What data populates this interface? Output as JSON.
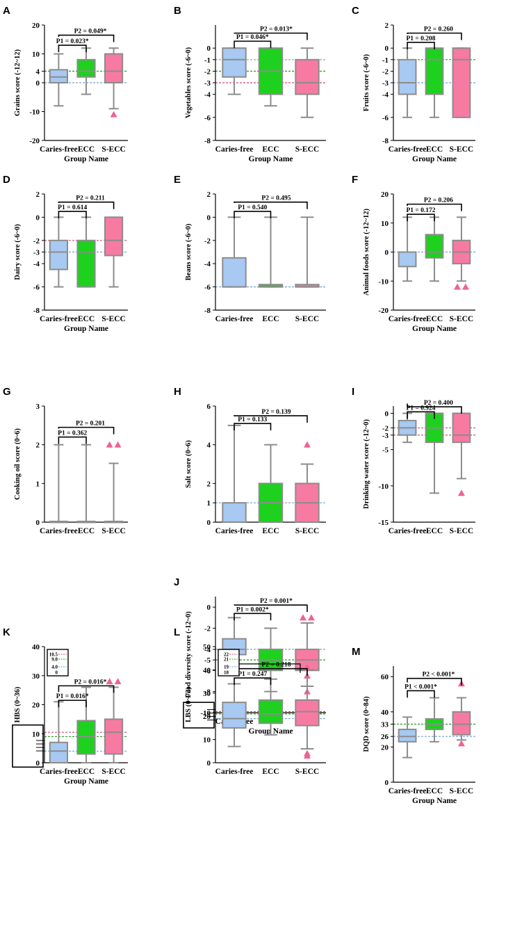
{
  "figure": {
    "group_axis_title": "Group Name",
    "groups": [
      "Caries-free",
      "ECC",
      "S-ECC"
    ],
    "colors": {
      "Caries-free": "#a7c9f2",
      "ECC": "#1ed11e",
      "S-ECC": "#f77aa2",
      "whisker": "#8c8c8c",
      "outlier": "#f06292",
      "line_red": "#d0457a",
      "line_green": "#1d9c1d",
      "line_blue": "#6f9fd6"
    }
  },
  "chart_data": [
    {
      "id": "A",
      "type": "box",
      "ylabel": "Grains score (-12~12)",
      "yticks": [
        -20,
        -10,
        0,
        4,
        10,
        20
      ],
      "ylim": [
        -20,
        20
      ],
      "refs": [
        {
          "y": 4,
          "c": "green"
        },
        {
          "y": 0,
          "c": "blue"
        }
      ],
      "boxes": [
        {
          "min": -8,
          "q1": 0,
          "med": 2,
          "q3": 4.5,
          "max": 10,
          "out": []
        },
        {
          "min": -4,
          "q1": 2,
          "med": 4,
          "q3": 8,
          "max": 12,
          "out": []
        },
        {
          "min": -9,
          "q1": 0,
          "med": 4,
          "q3": 10,
          "max": 12,
          "out": [
            -11
          ]
        }
      ],
      "p1": "P1 = 0.023*",
      "p2": "P2 = 0.049*",
      "p1_y": 13,
      "p2_y": 16.5,
      "has_xlabel": true
    },
    {
      "id": "B",
      "type": "box",
      "ylabel": "Vegetables score (-6~0)",
      "yticks": [
        -8,
        -6,
        -4,
        -3,
        -2,
        -1,
        0
      ],
      "ylim": [
        -8,
        2
      ],
      "refs": [
        {
          "y": -1,
          "c": "blue"
        },
        {
          "y": -2,
          "c": "green"
        },
        {
          "y": -3,
          "c": "red"
        }
      ],
      "boxes": [
        {
          "min": -4,
          "q1": -2.5,
          "med": -1,
          "q3": 0,
          "max": 0,
          "out": []
        },
        {
          "min": -5,
          "q1": -4,
          "med": -2,
          "q3": 0,
          "max": 0,
          "out": []
        },
        {
          "min": -6,
          "q1": -4,
          "med": -3,
          "q3": -1,
          "max": 0,
          "out": []
        }
      ],
      "p1": "P1 = 0.046*",
      "p2": "P2 = 0.013*",
      "p1_y": 0.6,
      "p2_y": 1.3,
      "has_xlabel": true
    },
    {
      "id": "C",
      "type": "box",
      "ylabel": "Fruits score (-6~0)",
      "yticks": [
        -8,
        -6,
        -4,
        -3,
        -2,
        -1,
        0,
        2
      ],
      "ylim": [
        -8,
        2
      ],
      "refs": [
        {
          "y": -1,
          "c": "green"
        },
        {
          "y": -3,
          "c": "blue"
        }
      ],
      "boxes": [
        {
          "min": -6,
          "q1": -4,
          "med": -3,
          "q3": -1,
          "max": 0,
          "out": []
        },
        {
          "min": -6,
          "q1": -4,
          "med": -1,
          "q3": 0,
          "max": 0,
          "out": []
        },
        {
          "min": -6,
          "q1": -6,
          "med": -1,
          "q3": 0,
          "max": 0,
          "out": []
        }
      ],
      "p1": "P1 = 0.208",
      "p2": "P2 = 0.260",
      "p1_y": 0.5,
      "p2_y": 1.3,
      "has_xlabel": true
    },
    {
      "id": "D",
      "type": "box",
      "ylabel": "Dairy score (-6~0)",
      "yticks": [
        -8,
        -6,
        -4,
        -3,
        -2,
        0,
        2
      ],
      "ylim": [
        -8,
        2
      ],
      "refs": [
        {
          "y": -2,
          "c": "red"
        },
        {
          "y": -3,
          "c": "blue"
        }
      ],
      "boxes": [
        {
          "min": -6,
          "q1": -4.5,
          "med": -3,
          "q3": -2,
          "max": 0,
          "out": []
        },
        {
          "min": -6,
          "q1": -6,
          "med": -3,
          "q3": -2,
          "max": 0,
          "out": []
        },
        {
          "min": -6,
          "q1": -3.3,
          "med": -2,
          "q3": 0,
          "max": 0,
          "out": []
        }
      ],
      "p1": "P1 = 0.614",
      "p2": "P2 = 0.211",
      "p1_y": 0.5,
      "p2_y": 1.3,
      "has_xlabel": true
    },
    {
      "id": "E",
      "type": "box",
      "ylabel": "Beans score (-6~0)",
      "yticks": [
        -8,
        -6,
        -4,
        -2,
        0,
        2
      ],
      "ylim": [
        -8,
        2
      ],
      "refs": [
        {
          "y": -6,
          "c": "blue"
        }
      ],
      "boxes": [
        {
          "min": -6,
          "q1": -6,
          "med": -6,
          "q3": -3.5,
          "max": 0,
          "out": []
        },
        {
          "min": -6,
          "q1": -6,
          "med": -6,
          "q3": -5.8,
          "max": 0,
          "out": []
        },
        {
          "min": -6,
          "q1": -6,
          "med": -6,
          "q3": -5.8,
          "max": 0,
          "out": []
        }
      ],
      "p1": "P1 = 0.540",
      "p2": "P2 = 0.495",
      "p1_y": 0.5,
      "p2_y": 1.3,
      "has_xlabel": false
    },
    {
      "id": "F",
      "type": "box",
      "ylabel": "Animal foods score (-12~12)",
      "yticks": [
        -20,
        -10,
        0,
        10,
        20
      ],
      "ylim": [
        -20,
        20
      ],
      "refs": [
        {
          "y": 0,
          "c": "blue"
        }
      ],
      "boxes": [
        {
          "min": -10,
          "q1": -5,
          "med": 0,
          "q3": 0,
          "max": 12,
          "out": []
        },
        {
          "min": -10,
          "q1": -2,
          "med": 0,
          "q3": 6,
          "max": 12,
          "out": []
        },
        {
          "min": -10,
          "q1": -4,
          "med": 0,
          "q3": 4,
          "max": 12,
          "out": [
            -12,
            -12
          ]
        }
      ],
      "p1": "P1 = 0.172",
      "p2": "P2 = 0.206",
      "p1_y": 13,
      "p2_y": 16.5,
      "has_xlabel": true
    },
    {
      "id": "G",
      "type": "box",
      "ylabel": "Cooking oil score (0~6)",
      "yticks": [
        0,
        1,
        2,
        3
      ],
      "ylim": [
        0,
        3
      ],
      "refs": [],
      "boxes": [
        {
          "min": 0,
          "q1": 0,
          "med": 0,
          "q3": 0.02,
          "max": 2,
          "out": []
        },
        {
          "min": 0,
          "q1": 0,
          "med": 0,
          "q3": 0.02,
          "max": 2,
          "out": []
        },
        {
          "min": 0,
          "q1": 0,
          "med": 0,
          "q3": 0.02,
          "max": 1.52,
          "out": [
            2,
            2
          ]
        }
      ],
      "p1": "P1 = 0.362",
      "p2": "P2 = 0.201",
      "p1_y": 2.2,
      "p2_y": 2.45,
      "has_xlabel": false
    },
    {
      "id": "H",
      "type": "box",
      "ylabel": "Salt score (0~6)",
      "yticks": [
        0,
        1,
        2,
        4,
        6
      ],
      "ylim": [
        0,
        6
      ],
      "refs": [
        {
          "y": 1,
          "c": "blue"
        }
      ],
      "boxes": [
        {
          "min": 0,
          "q1": 0,
          "med": 0,
          "q3": 1,
          "max": 5,
          "out": []
        },
        {
          "min": 0,
          "q1": 0,
          "med": 1,
          "q3": 2,
          "max": 4,
          "out": []
        },
        {
          "min": 0,
          "q1": 0,
          "med": 1,
          "q3": 2,
          "max": 3,
          "out": [
            4
          ]
        }
      ],
      "p1": "P1 = 0.133",
      "p2": "P2 = 0.139",
      "p1_y": 5.1,
      "p2_y": 5.5,
      "has_xlabel": false
    },
    {
      "id": "I",
      "type": "box",
      "ylabel": "Drinking water score (-12~0)",
      "yticks": [
        -15,
        -10,
        -5,
        -3,
        -2,
        0
      ],
      "ylim": [
        -15,
        1
      ],
      "refs": [
        {
          "y": -2,
          "c": "red"
        },
        {
          "y": -3,
          "c": "red"
        }
      ],
      "boxes": [
        {
          "min": -4,
          "q1": -3,
          "med": -2,
          "q3": -1,
          "max": 0,
          "out": []
        },
        {
          "min": -11,
          "q1": -4,
          "med": -2,
          "q3": 0,
          "max": 0,
          "out": []
        },
        {
          "min": -9,
          "q1": -4,
          "med": -3,
          "q3": 0,
          "max": 0,
          "out": [
            -11
          ]
        }
      ],
      "p1": "P1 = 0.924",
      "p2": "P2 = 0.400",
      "p1_y": 0.2,
      "p2_y": 0.9,
      "has_xlabel": false
    },
    {
      "id": "J",
      "type": "box",
      "ylabel": "Food diversity score (-12~0)",
      "yticks": [
        -10,
        -8,
        -6,
        -5,
        -4,
        -2,
        0
      ],
      "ylim": [
        -10,
        1
      ],
      "refs": [
        {
          "y": -4,
          "c": "blue"
        },
        {
          "y": -5,
          "c": "green"
        }
      ],
      "boxes": [
        {
          "min": -5,
          "q1": -4.5,
          "med": -4,
          "q3": -3,
          "max": -1,
          "out": []
        },
        {
          "min": -8,
          "q1": -6,
          "med": -5,
          "q3": -4,
          "max": -2,
          "out": []
        },
        {
          "min": -7.5,
          "q1": -6,
          "med": -5,
          "q3": -4,
          "max": -1.5,
          "out": [
            -1,
            -1,
            -6.5,
            -8,
            -9
          ]
        }
      ],
      "p1": "P1 = 0.002*",
      "p2": "P2 = 0.001*",
      "p1_y": -0.6,
      "p2_y": 0.2,
      "has_xlabel": true
    },
    {
      "id": "K",
      "type": "box",
      "ylabel": "HBS (0~36)",
      "yticks": [
        0,
        10,
        20,
        30,
        40
      ],
      "ylim": [
        0,
        40
      ],
      "refs": [
        {
          "y": 10.5,
          "c": "red"
        },
        {
          "y": 9,
          "c": "green"
        },
        {
          "y": 4,
          "c": "blue"
        }
      ],
      "boxes": [
        {
          "min": 0,
          "q1": 0,
          "med": 4,
          "q3": 7,
          "max": 21,
          "out": []
        },
        {
          "min": 0,
          "q1": 3,
          "med": 9,
          "q3": 14.5,
          "max": 26,
          "out": []
        },
        {
          "min": 0,
          "q1": 3,
          "med": 10.5,
          "q3": 15,
          "max": 26,
          "out": [
            28,
            28
          ]
        }
      ],
      "p1": "P1 = 0.016*",
      "p2": "P2 = 0.016*",
      "p1_y": 21.5,
      "p2_y": 26.5,
      "has_xlabel": true,
      "inset": {
        "ticks": [
          "10.5",
          "9.0",
          "4.0",
          "0"
        ]
      }
    },
    {
      "id": "L",
      "type": "box",
      "ylabel": "LBS (0~72)",
      "yticks": [
        0,
        10,
        20,
        30,
        40,
        50
      ],
      "ylim": [
        0,
        50
      ],
      "refs": [
        {
          "y": 22,
          "c": "red"
        },
        {
          "y": 21,
          "c": "green"
        },
        {
          "y": 19,
          "c": "blue"
        }
      ],
      "boxes": [
        {
          "min": 7,
          "q1": 15,
          "med": 19,
          "q3": 26,
          "max": 34,
          "out": []
        },
        {
          "min": 12,
          "q1": 17,
          "med": 21,
          "q3": 27,
          "max": 36,
          "out": []
        },
        {
          "min": 6,
          "q1": 16,
          "med": 22,
          "q3": 27,
          "max": 40,
          "out": [
            3,
            4,
            41
          ]
        }
      ],
      "p1": "P1 = 0.247",
      "p2": "P2 = 0.218",
      "p1_y": 36.5,
      "p2_y": 40.5,
      "has_xlabel": false,
      "inset": {
        "ticks": [
          "22",
          "21",
          "19",
          "18"
        ]
      }
    },
    {
      "id": "M",
      "type": "box",
      "ylabel": "DQD score (0~84)",
      "yticks": [
        0,
        20,
        26,
        33,
        40,
        60
      ],
      "ylim": [
        0,
        66
      ],
      "refs": [
        {
          "y": 33,
          "c": "green"
        },
        {
          "y": 26,
          "c": "blue"
        }
      ],
      "boxes": [
        {
          "min": 14,
          "q1": 23,
          "med": 26,
          "q3": 30,
          "max": 37,
          "out": []
        },
        {
          "min": 23,
          "q1": 30,
          "med": 33,
          "q3": 36,
          "max": 48,
          "out": []
        },
        {
          "min": 24,
          "q1": 27,
          "med": 33,
          "q3": 40,
          "max": 48,
          "out": [
            56,
            22
          ]
        }
      ],
      "p1": "P1 < 0.001*",
      "p2": "P2 < 0.001*",
      "p1_y": 52,
      "p2_y": 59,
      "has_xlabel": true
    }
  ]
}
